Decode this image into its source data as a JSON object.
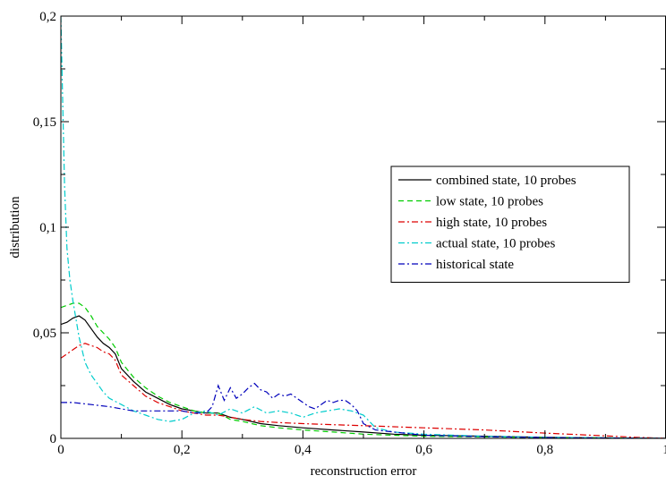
{
  "chart_data": {
    "type": "line",
    "xlabel": "reconstruction error",
    "ylabel": "distribution",
    "xlim": [
      0,
      1
    ],
    "ylim": [
      0,
      0.2
    ],
    "x_ticks": [
      {
        "value": 0,
        "label": "0"
      },
      {
        "value": 0.2,
        "label": "0,2"
      },
      {
        "value": 0.4,
        "label": "0,4"
      },
      {
        "value": 0.6,
        "label": "0,6"
      },
      {
        "value": 0.8,
        "label": "0,8"
      },
      {
        "value": 1,
        "label": "1"
      }
    ],
    "y_ticks": [
      {
        "value": 0,
        "label": "0"
      },
      {
        "value": 0.05,
        "label": "0,05"
      },
      {
        "value": 0.1,
        "label": "0,1"
      },
      {
        "value": 0.15,
        "label": "0,15"
      },
      {
        "value": 0.2,
        "label": "0,2"
      }
    ],
    "grid": false,
    "legend_position": "right",
    "series": [
      {
        "name": "combined state, 10 probes",
        "color": "#000000",
        "dash": "solid",
        "points": [
          [
            0,
            0.054
          ],
          [
            0.01,
            0.055
          ],
          [
            0.02,
            0.057
          ],
          [
            0.03,
            0.058
          ],
          [
            0.04,
            0.056
          ],
          [
            0.05,
            0.052
          ],
          [
            0.06,
            0.048
          ],
          [
            0.07,
            0.045
          ],
          [
            0.08,
            0.043
          ],
          [
            0.09,
            0.04
          ],
          [
            0.1,
            0.033
          ],
          [
            0.12,
            0.027
          ],
          [
            0.14,
            0.022
          ],
          [
            0.16,
            0.019
          ],
          [
            0.18,
            0.016
          ],
          [
            0.2,
            0.014
          ],
          [
            0.22,
            0.013
          ],
          [
            0.24,
            0.012
          ],
          [
            0.26,
            0.012
          ],
          [
            0.28,
            0.01
          ],
          [
            0.3,
            0.009
          ],
          [
            0.33,
            0.007
          ],
          [
            0.36,
            0.006
          ],
          [
            0.4,
            0.005
          ],
          [
            0.45,
            0.004
          ],
          [
            0.5,
            0.003
          ],
          [
            0.55,
            0.002
          ],
          [
            0.6,
            0.0015
          ],
          [
            0.7,
            0.001
          ],
          [
            0.8,
            0.0005
          ],
          [
            0.9,
            0.0002
          ],
          [
            1,
            0
          ]
        ]
      },
      {
        "name": "low state, 10 probes",
        "color": "#00cc00",
        "dash": "dashed",
        "points": [
          [
            0,
            0.062
          ],
          [
            0.01,
            0.063
          ],
          [
            0.02,
            0.064
          ],
          [
            0.03,
            0.064
          ],
          [
            0.04,
            0.062
          ],
          [
            0.05,
            0.058
          ],
          [
            0.06,
            0.053
          ],
          [
            0.07,
            0.05
          ],
          [
            0.08,
            0.047
          ],
          [
            0.09,
            0.043
          ],
          [
            0.1,
            0.036
          ],
          [
            0.12,
            0.029
          ],
          [
            0.14,
            0.024
          ],
          [
            0.16,
            0.02
          ],
          [
            0.18,
            0.017
          ],
          [
            0.2,
            0.015
          ],
          [
            0.22,
            0.013
          ],
          [
            0.24,
            0.012
          ],
          [
            0.26,
            0.012
          ],
          [
            0.28,
            0.009
          ],
          [
            0.3,
            0.008
          ],
          [
            0.33,
            0.006
          ],
          [
            0.36,
            0.005
          ],
          [
            0.4,
            0.004
          ],
          [
            0.45,
            0.003
          ],
          [
            0.5,
            0.002
          ],
          [
            0.55,
            0.0015
          ],
          [
            0.6,
            0.001
          ],
          [
            0.7,
            0.0007
          ],
          [
            0.8,
            0.0004
          ],
          [
            0.9,
            0.0002
          ],
          [
            1,
            0
          ]
        ]
      },
      {
        "name": "high state, 10 probes",
        "color": "#dd0000",
        "dash": "dashdot",
        "points": [
          [
            0,
            0.038
          ],
          [
            0.01,
            0.04
          ],
          [
            0.02,
            0.042
          ],
          [
            0.03,
            0.044
          ],
          [
            0.04,
            0.045
          ],
          [
            0.05,
            0.044
          ],
          [
            0.06,
            0.043
          ],
          [
            0.07,
            0.041
          ],
          [
            0.08,
            0.04
          ],
          [
            0.09,
            0.037
          ],
          [
            0.1,
            0.03
          ],
          [
            0.12,
            0.025
          ],
          [
            0.14,
            0.02
          ],
          [
            0.16,
            0.017
          ],
          [
            0.18,
            0.015
          ],
          [
            0.2,
            0.013
          ],
          [
            0.22,
            0.012
          ],
          [
            0.24,
            0.011
          ],
          [
            0.26,
            0.011
          ],
          [
            0.28,
            0.01
          ],
          [
            0.3,
            0.009
          ],
          [
            0.33,
            0.008
          ],
          [
            0.36,
            0.0075
          ],
          [
            0.4,
            0.007
          ],
          [
            0.45,
            0.0065
          ],
          [
            0.5,
            0.006
          ],
          [
            0.55,
            0.0055
          ],
          [
            0.6,
            0.005
          ],
          [
            0.65,
            0.0045
          ],
          [
            0.7,
            0.004
          ],
          [
            0.8,
            0.0025
          ],
          [
            0.9,
            0.0012
          ],
          [
            0.95,
            0.0005
          ],
          [
            1,
            0
          ]
        ]
      },
      {
        "name": "actual state, 10 probes",
        "color": "#00cccc",
        "dash": "dashdot",
        "points": [
          [
            0,
            0.2
          ],
          [
            0.003,
            0.16
          ],
          [
            0.006,
            0.12
          ],
          [
            0.01,
            0.09
          ],
          [
            0.015,
            0.075
          ],
          [
            0.02,
            0.065
          ],
          [
            0.03,
            0.048
          ],
          [
            0.04,
            0.036
          ],
          [
            0.05,
            0.03
          ],
          [
            0.06,
            0.026
          ],
          [
            0.07,
            0.022
          ],
          [
            0.08,
            0.019
          ],
          [
            0.1,
            0.016
          ],
          [
            0.12,
            0.013
          ],
          [
            0.14,
            0.011
          ],
          [
            0.16,
            0.009
          ],
          [
            0.18,
            0.008
          ],
          [
            0.2,
            0.009
          ],
          [
            0.22,
            0.012
          ],
          [
            0.24,
            0.013
          ],
          [
            0.26,
            0.011
          ],
          [
            0.28,
            0.014
          ],
          [
            0.3,
            0.012
          ],
          [
            0.32,
            0.015
          ],
          [
            0.34,
            0.012
          ],
          [
            0.36,
            0.013
          ],
          [
            0.38,
            0.012
          ],
          [
            0.4,
            0.01
          ],
          [
            0.42,
            0.012
          ],
          [
            0.44,
            0.013
          ],
          [
            0.46,
            0.014
          ],
          [
            0.48,
            0.013
          ],
          [
            0.5,
            0.011
          ],
          [
            0.52,
            0.005
          ],
          [
            0.55,
            0.003
          ],
          [
            0.6,
            0.002
          ],
          [
            0.7,
            0.001
          ],
          [
            0.8,
            0.0005
          ],
          [
            1,
            0
          ]
        ]
      },
      {
        "name": "historical state",
        "color": "#0000bb",
        "dash": "dashdot",
        "points": [
          [
            0,
            0.017
          ],
          [
            0.02,
            0.017
          ],
          [
            0.05,
            0.016
          ],
          [
            0.08,
            0.015
          ],
          [
            0.1,
            0.014
          ],
          [
            0.12,
            0.013
          ],
          [
            0.15,
            0.013
          ],
          [
            0.18,
            0.013
          ],
          [
            0.2,
            0.013
          ],
          [
            0.22,
            0.012
          ],
          [
            0.24,
            0.012
          ],
          [
            0.25,
            0.015
          ],
          [
            0.26,
            0.025
          ],
          [
            0.27,
            0.018
          ],
          [
            0.28,
            0.024
          ],
          [
            0.29,
            0.019
          ],
          [
            0.3,
            0.021
          ],
          [
            0.31,
            0.024
          ],
          [
            0.32,
            0.026
          ],
          [
            0.33,
            0.023
          ],
          [
            0.34,
            0.022
          ],
          [
            0.35,
            0.019
          ],
          [
            0.36,
            0.021
          ],
          [
            0.37,
            0.02
          ],
          [
            0.38,
            0.021
          ],
          [
            0.39,
            0.019
          ],
          [
            0.4,
            0.017
          ],
          [
            0.41,
            0.015
          ],
          [
            0.42,
            0.014
          ],
          [
            0.43,
            0.016
          ],
          [
            0.44,
            0.018
          ],
          [
            0.45,
            0.017
          ],
          [
            0.46,
            0.018
          ],
          [
            0.47,
            0.018
          ],
          [
            0.48,
            0.016
          ],
          [
            0.49,
            0.013
          ],
          [
            0.5,
            0.007
          ],
          [
            0.52,
            0.004
          ],
          [
            0.55,
            0.003
          ],
          [
            0.6,
            0.0015
          ],
          [
            0.7,
            0.0008
          ],
          [
            0.8,
            0.0004
          ],
          [
            1,
            0
          ]
        ]
      }
    ]
  }
}
